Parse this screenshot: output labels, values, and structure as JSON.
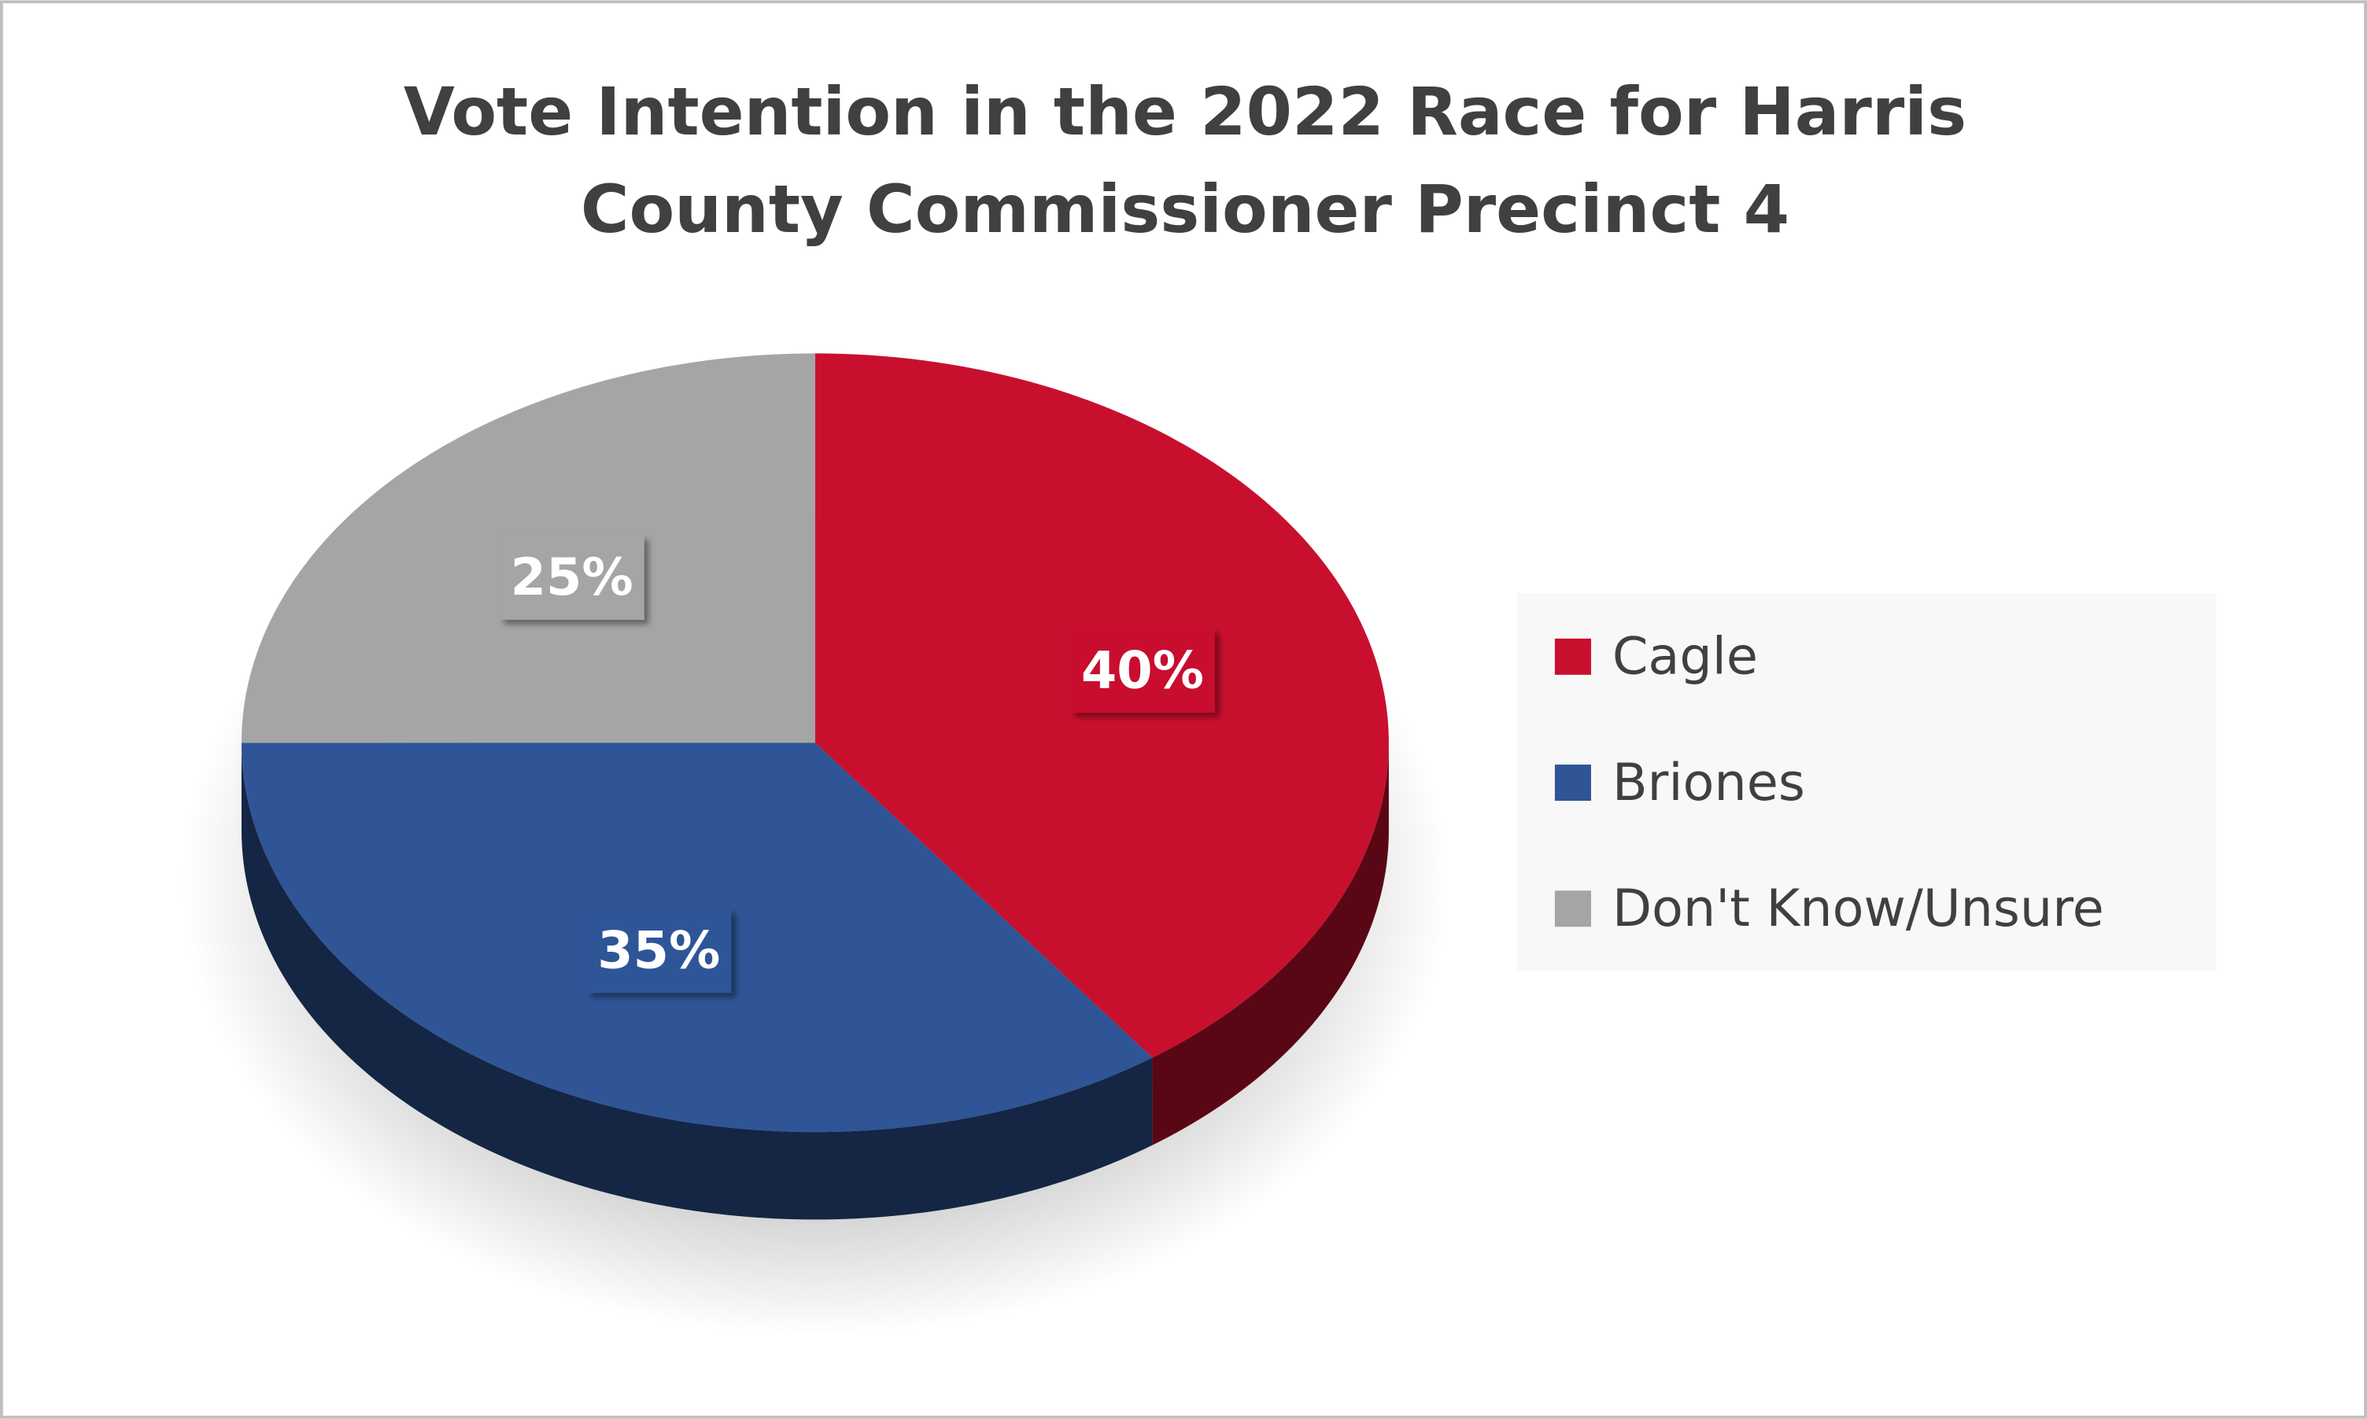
{
  "chart_data": {
    "type": "pie",
    "title": "Vote Intention in the 2022 Race for Harris County Commissioner Precinct 4",
    "categories": [
      "Cagle",
      "Briones",
      "Don't Know/Unsure"
    ],
    "values": [
      40,
      35,
      25
    ],
    "value_labels": [
      "40%",
      "35%",
      "25%"
    ],
    "colors": [
      "#c8102e",
      "#2f5597",
      "#a5a5a5"
    ],
    "legend": "right"
  }
}
